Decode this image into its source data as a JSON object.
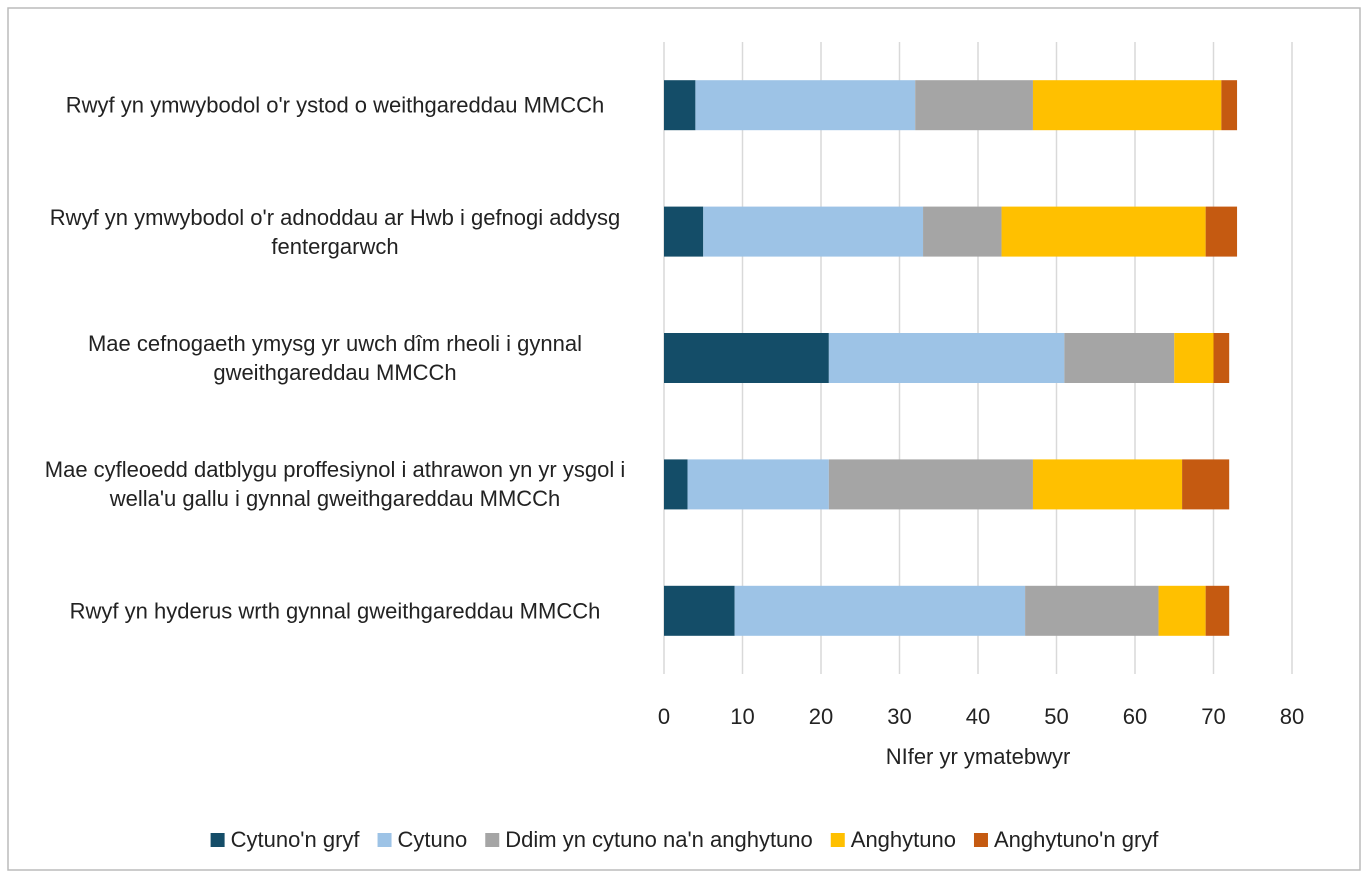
{
  "chart_data": {
    "type": "stacked_bar_horizontal",
    "categories": [
      "Rwyf yn ymwybodol o'r ystod o weithgareddau MMCCh",
      "Rwyf yn ymwybodol o'r adnoddau ar Hwb i gefnogi addysg fentergarwch",
      "Mae cefnogaeth ymysg yr uwch dîm rheoli i gynnal gweithgareddau MMCCh",
      "Mae cyfleoedd datblygu proffesiynol i athrawon yn yr ysgol i wella'u gallu i gynnal gweithgareddau MMCCh",
      "Rwyf yn hyderus wrth gynnal gweithgareddau MMCCh"
    ],
    "series": [
      {
        "name": "Cytuno'n gryf",
        "color": "#144d68",
        "values": [
          4,
          5,
          21,
          3,
          9
        ]
      },
      {
        "name": "Cytuno",
        "color": "#9dc3e6",
        "values": [
          28,
          28,
          30,
          18,
          37
        ]
      },
      {
        "name": "Ddim yn cytuno na'n anghytuno",
        "color": "#a5a5a5",
        "values": [
          15,
          10,
          14,
          26,
          17
        ]
      },
      {
        "name": "Anghytuno",
        "color": "#ffc000",
        "values": [
          24,
          26,
          5,
          19,
          6
        ]
      },
      {
        "name": "Anghytuno'n gryf",
        "color": "#c55a11",
        "values": [
          2,
          4,
          2,
          6,
          3
        ]
      }
    ],
    "xlabel": "NIfer yr ymatebwyr",
    "xlim": [
      0,
      80
    ],
    "xticks": [
      0,
      10,
      20,
      30,
      40,
      50,
      60,
      70,
      80
    ],
    "grid": true,
    "legend": "bottom"
  }
}
